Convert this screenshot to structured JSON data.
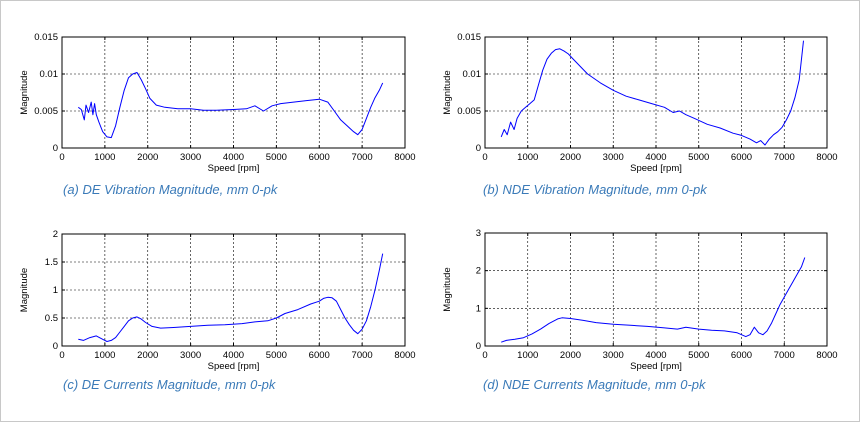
{
  "chart_data": [
    {
      "type": "line",
      "caption": "(a) DE Vibration Magnitude, mm 0-pk",
      "xlabel": "Speed [rpm]",
      "ylabel": "Magnitude",
      "xlim": [
        0,
        8000
      ],
      "ylim": [
        0,
        0.015
      ],
      "xticks": [
        0,
        1000,
        2000,
        3000,
        4000,
        5000,
        6000,
        7000,
        8000
      ],
      "yticks": [
        0,
        0.005,
        0.01,
        0.015
      ],
      "yticklabels": [
        "0",
        "0.005",
        "0.01",
        "0.015"
      ],
      "grid": true,
      "line_color": "#0000ff",
      "x": [
        380,
        450,
        520,
        560,
        620,
        680,
        720,
        760,
        800,
        860,
        950,
        1050,
        1150,
        1250,
        1350,
        1450,
        1550,
        1650,
        1750,
        1850,
        1950,
        2050,
        2200,
        2400,
        2700,
        3000,
        3300,
        3600,
        4000,
        4300,
        4500,
        4700,
        4900,
        5100,
        5400,
        5700,
        6000,
        6200,
        6350,
        6500,
        6650,
        6800,
        6900,
        7000,
        7100,
        7200,
        7300,
        7400,
        7480
      ],
      "y": [
        0.0055,
        0.0052,
        0.0038,
        0.0058,
        0.0048,
        0.0062,
        0.0045,
        0.006,
        0.0045,
        0.0035,
        0.0022,
        0.0015,
        0.0014,
        0.003,
        0.0055,
        0.0078,
        0.0095,
        0.01,
        0.0102,
        0.0092,
        0.008,
        0.0067,
        0.0058,
        0.0055,
        0.0053,
        0.0053,
        0.0051,
        0.0051,
        0.0052,
        0.0053,
        0.0057,
        0.005,
        0.0057,
        0.006,
        0.0062,
        0.0064,
        0.0066,
        0.0062,
        0.005,
        0.0038,
        0.003,
        0.0022,
        0.0018,
        0.0025,
        0.004,
        0.0055,
        0.0068,
        0.0078,
        0.0088
      ]
    },
    {
      "type": "line",
      "caption": "(b) NDE Vibration Magnitude, mm 0-pk",
      "xlabel": "Speed [rpm]",
      "ylabel": "Magnitude",
      "xlim": [
        0,
        8000
      ],
      "ylim": [
        0,
        0.015
      ],
      "xticks": [
        0,
        1000,
        2000,
        3000,
        4000,
        5000,
        6000,
        7000,
        8000
      ],
      "yticks": [
        0,
        0.005,
        0.01,
        0.015
      ],
      "yticklabels": [
        "0",
        "0.005",
        "0.01",
        "0.015"
      ],
      "grid": true,
      "line_color": "#0000ff",
      "x": [
        380,
        450,
        520,
        600,
        680,
        750,
        850,
        950,
        1050,
        1150,
        1250,
        1350,
        1450,
        1550,
        1650,
        1750,
        1850,
        1950,
        2050,
        2200,
        2400,
        2700,
        3000,
        3300,
        3600,
        3900,
        4200,
        4400,
        4550,
        4700,
        4900,
        5200,
        5500,
        5800,
        6000,
        6200,
        6350,
        6450,
        6550,
        6650,
        6750,
        6850,
        6950,
        7050,
        7150,
        7250,
        7350,
        7450
      ],
      "y": [
        0.0015,
        0.0025,
        0.0018,
        0.0035,
        0.0025,
        0.004,
        0.005,
        0.0055,
        0.006,
        0.0065,
        0.0085,
        0.0105,
        0.012,
        0.0128,
        0.0133,
        0.0134,
        0.0131,
        0.0127,
        0.0121,
        0.0112,
        0.01,
        0.0088,
        0.0078,
        0.007,
        0.0065,
        0.006,
        0.0055,
        0.0048,
        0.005,
        0.0045,
        0.004,
        0.0032,
        0.0027,
        0.002,
        0.0017,
        0.0012,
        0.0007,
        0.001,
        0.0004,
        0.0012,
        0.0018,
        0.0022,
        0.0028,
        0.0038,
        0.005,
        0.0068,
        0.0092,
        0.0145
      ]
    },
    {
      "type": "line",
      "caption": "(c) DE Currents Magnitude, mm 0-pk",
      "xlabel": "Speed [rpm]",
      "ylabel": "Magnitude",
      "xlim": [
        0,
        8000
      ],
      "ylim": [
        0,
        2
      ],
      "xticks": [
        0,
        1000,
        2000,
        3000,
        4000,
        5000,
        6000,
        7000,
        8000
      ],
      "yticks": [
        0,
        0.5,
        1,
        1.5,
        2
      ],
      "yticklabels": [
        "0",
        "0.5",
        "1",
        "1.5",
        "2"
      ],
      "grid": true,
      "line_color": "#0000ff",
      "x": [
        380,
        500,
        650,
        800,
        950,
        1050,
        1150,
        1250,
        1350,
        1450,
        1550,
        1650,
        1750,
        1850,
        1950,
        2100,
        2300,
        2600,
        3000,
        3400,
        3800,
        4200,
        4500,
        4800,
        5000,
        5200,
        5500,
        5800,
        6000,
        6100,
        6200,
        6300,
        6400,
        6500,
        6600,
        6700,
        6800,
        6900,
        7000,
        7100,
        7200,
        7300,
        7400,
        7480
      ],
      "y": [
        0.12,
        0.1,
        0.15,
        0.18,
        0.12,
        0.08,
        0.1,
        0.15,
        0.25,
        0.35,
        0.45,
        0.5,
        0.52,
        0.48,
        0.42,
        0.35,
        0.32,
        0.33,
        0.35,
        0.37,
        0.38,
        0.4,
        0.43,
        0.45,
        0.5,
        0.58,
        0.65,
        0.75,
        0.8,
        0.85,
        0.87,
        0.86,
        0.8,
        0.65,
        0.5,
        0.38,
        0.28,
        0.22,
        0.3,
        0.45,
        0.7,
        1.0,
        1.35,
        1.65
      ]
    },
    {
      "type": "line",
      "caption": "(d) NDE Currents Magnitude, mm 0-pk",
      "xlabel": "Speed [rpm]",
      "ylabel": "Magnitude",
      "xlim": [
        0,
        8000
      ],
      "ylim": [
        0,
        3
      ],
      "xticks": [
        0,
        1000,
        2000,
        3000,
        4000,
        5000,
        6000,
        7000,
        8000
      ],
      "yticks": [
        0,
        1,
        2,
        3
      ],
      "yticklabels": [
        "0",
        "1",
        "2",
        "3"
      ],
      "grid": true,
      "line_color": "#0000ff",
      "x": [
        380,
        500,
        700,
        900,
        1100,
        1300,
        1500,
        1700,
        1800,
        2000,
        2300,
        2600,
        3000,
        3400,
        3800,
        4200,
        4500,
        4700,
        5000,
        5300,
        5600,
        5900,
        6100,
        6200,
        6300,
        6400,
        6500,
        6600,
        6700,
        6800,
        6900,
        7000,
        7100,
        7200,
        7300,
        7400,
        7480
      ],
      "y": [
        0.1,
        0.15,
        0.18,
        0.22,
        0.32,
        0.45,
        0.6,
        0.72,
        0.75,
        0.73,
        0.68,
        0.62,
        0.58,
        0.55,
        0.52,
        0.48,
        0.45,
        0.5,
        0.45,
        0.42,
        0.4,
        0.35,
        0.25,
        0.3,
        0.5,
        0.35,
        0.3,
        0.4,
        0.6,
        0.85,
        1.1,
        1.3,
        1.5,
        1.7,
        1.9,
        2.1,
        2.35
      ]
    }
  ]
}
